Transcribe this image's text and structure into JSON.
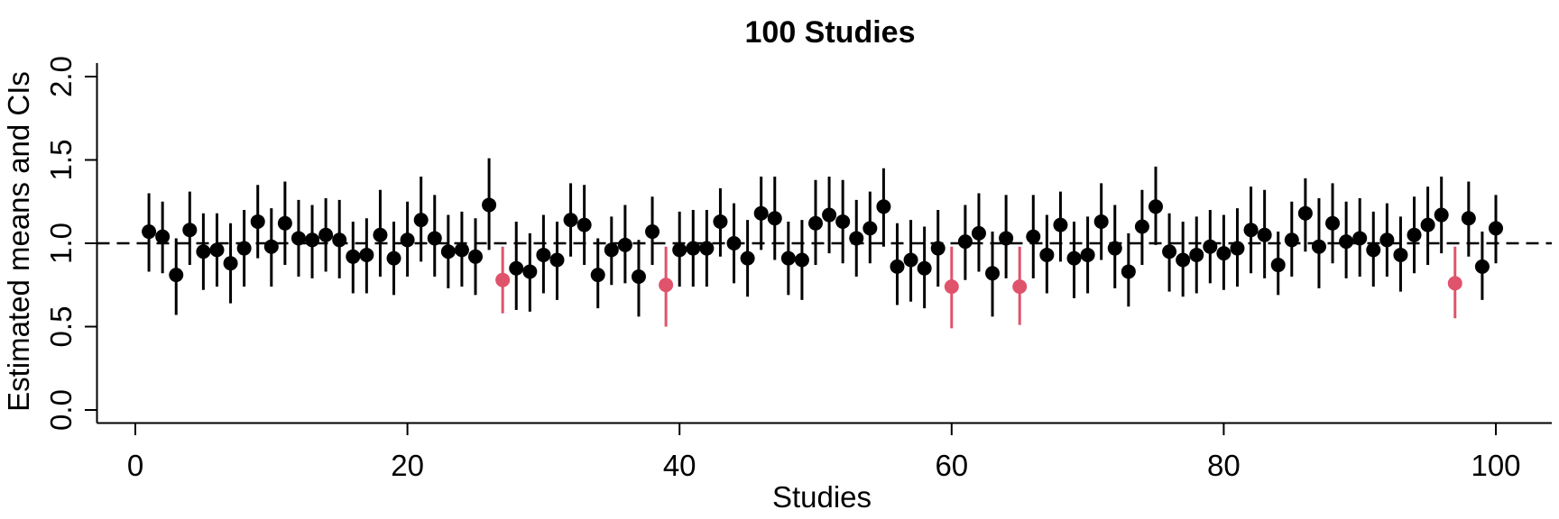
{
  "chart_data": {
    "type": "scatter",
    "title": "100 Studies",
    "xlabel": "Studies",
    "ylabel": "Estimated means and CIs",
    "xlim": [
      0,
      104
    ],
    "ylim": [
      0.0,
      2.0
    ],
    "x_ticks": [
      0,
      20,
      40,
      60,
      80,
      100
    ],
    "y_ticks": [
      0.0,
      0.5,
      1.0,
      1.5,
      2.0
    ],
    "x_tick_labels": [
      "0",
      "20",
      "40",
      "60",
      "80",
      "100"
    ],
    "y_tick_labels": [
      "0.0",
      "0.5",
      "1.0",
      "1.5",
      "2.0"
    ],
    "reference_line": 1.0,
    "grid": false,
    "colors": {
      "covers": "#000000",
      "misses": "#DF536B"
    },
    "series": [
      {
        "name": "",
        "studies": [
          1,
          2,
          3,
          4,
          5,
          6,
          7,
          8,
          9,
          10,
          11,
          12,
          13,
          14,
          15,
          16,
          17,
          18,
          19,
          20,
          21,
          22,
          23,
          24,
          25,
          26,
          27,
          28,
          29,
          30,
          31,
          32,
          33,
          34,
          35,
          36,
          37,
          38,
          39,
          40,
          41,
          42,
          43,
          44,
          45,
          46,
          47,
          48,
          49,
          50,
          51,
          52,
          53,
          54,
          55,
          56,
          57,
          58,
          59,
          60,
          61,
          62,
          63,
          64,
          65,
          66,
          67,
          68,
          69,
          70,
          71,
          72,
          73,
          74,
          75,
          76,
          77,
          78,
          79,
          80,
          81,
          82,
          83,
          84,
          85,
          86,
          87,
          88,
          89,
          90,
          91,
          92,
          93,
          94,
          95,
          96,
          97,
          98,
          99,
          100
        ],
        "means": [
          1.07,
          1.04,
          0.81,
          1.08,
          0.95,
          0.96,
          0.88,
          0.97,
          1.13,
          0.98,
          1.12,
          1.03,
          1.02,
          1.05,
          1.02,
          0.92,
          0.93,
          1.05,
          0.91,
          1.02,
          1.14,
          1.03,
          0.95,
          0.96,
          0.92,
          1.23,
          0.78,
          0.85,
          0.83,
          0.93,
          0.9,
          1.14,
          1.11,
          0.81,
          0.96,
          0.99,
          0.8,
          1.07,
          0.75,
          0.96,
          0.97,
          0.97,
          1.13,
          1.0,
          0.91,
          1.18,
          1.15,
          0.91,
          0.9,
          1.12,
          1.17,
          1.13,
          1.03,
          1.09,
          1.22,
          0.86,
          0.9,
          0.85,
          0.97,
          0.74,
          1.01,
          1.06,
          0.82,
          1.03,
          0.74,
          1.04,
          0.93,
          1.11,
          0.91,
          0.93,
          1.13,
          0.97,
          0.83,
          1.1,
          1.22,
          0.95,
          0.9,
          0.93,
          0.98,
          0.94,
          0.97,
          1.08,
          1.05,
          0.87,
          1.02,
          1.18,
          0.98,
          1.12,
          1.01,
          1.03,
          0.96,
          1.02,
          0.93,
          1.05,
          1.11,
          1.17,
          0.76,
          1.15,
          0.86,
          1.09
        ],
        "lower": [
          0.83,
          0.82,
          0.57,
          0.87,
          0.72,
          0.74,
          0.64,
          0.74,
          0.91,
          0.74,
          0.87,
          0.8,
          0.79,
          0.83,
          0.79,
          0.7,
          0.7,
          0.8,
          0.69,
          0.8,
          0.89,
          0.8,
          0.73,
          0.74,
          0.69,
          0.96,
          0.58,
          0.6,
          0.59,
          0.7,
          0.66,
          0.92,
          0.87,
          0.61,
          0.75,
          0.76,
          0.56,
          0.87,
          0.5,
          0.74,
          0.74,
          0.74,
          0.92,
          0.76,
          0.68,
          0.96,
          0.9,
          0.69,
          0.66,
          0.87,
          0.94,
          0.88,
          0.8,
          0.88,
          0.98,
          0.63,
          0.65,
          0.61,
          0.74,
          0.49,
          0.78,
          0.83,
          0.56,
          0.79,
          0.51,
          0.79,
          0.7,
          0.89,
          0.67,
          0.7,
          0.9,
          0.73,
          0.62,
          0.87,
          0.99,
          0.71,
          0.68,
          0.7,
          0.76,
          0.72,
          0.74,
          0.82,
          0.79,
          0.69,
          0.8,
          0.95,
          0.73,
          0.88,
          0.79,
          0.8,
          0.74,
          0.8,
          0.71,
          0.82,
          0.87,
          0.94,
          0.55,
          0.92,
          0.66,
          0.88
        ],
        "upper": [
          1.3,
          1.25,
          1.03,
          1.31,
          1.18,
          1.18,
          1.12,
          1.2,
          1.35,
          1.21,
          1.37,
          1.26,
          1.23,
          1.27,
          1.26,
          1.13,
          1.15,
          1.32,
          1.13,
          1.25,
          1.4,
          1.29,
          1.17,
          1.19,
          1.15,
          1.51,
          0.98,
          1.13,
          1.06,
          1.17,
          1.13,
          1.36,
          1.35,
          1.03,
          1.16,
          1.23,
          1.02,
          1.28,
          0.98,
          1.19,
          1.2,
          1.2,
          1.33,
          1.24,
          1.14,
          1.4,
          1.4,
          1.13,
          1.14,
          1.38,
          1.4,
          1.38,
          1.26,
          1.31,
          1.45,
          1.12,
          1.14,
          1.1,
          1.2,
          0.98,
          1.23,
          1.3,
          1.07,
          1.29,
          0.98,
          1.29,
          1.17,
          1.31,
          1.13,
          1.16,
          1.36,
          1.23,
          1.06,
          1.32,
          1.46,
          1.18,
          1.13,
          1.16,
          1.2,
          1.17,
          1.21,
          1.34,
          1.32,
          1.07,
          1.25,
          1.39,
          1.27,
          1.36,
          1.25,
          1.27,
          1.19,
          1.24,
          1.16,
          1.28,
          1.34,
          1.4,
          0.98,
          1.37,
          1.07,
          1.29
        ],
        "misses_true_value": [
          27,
          39,
          60,
          65,
          97
        ]
      }
    ]
  }
}
